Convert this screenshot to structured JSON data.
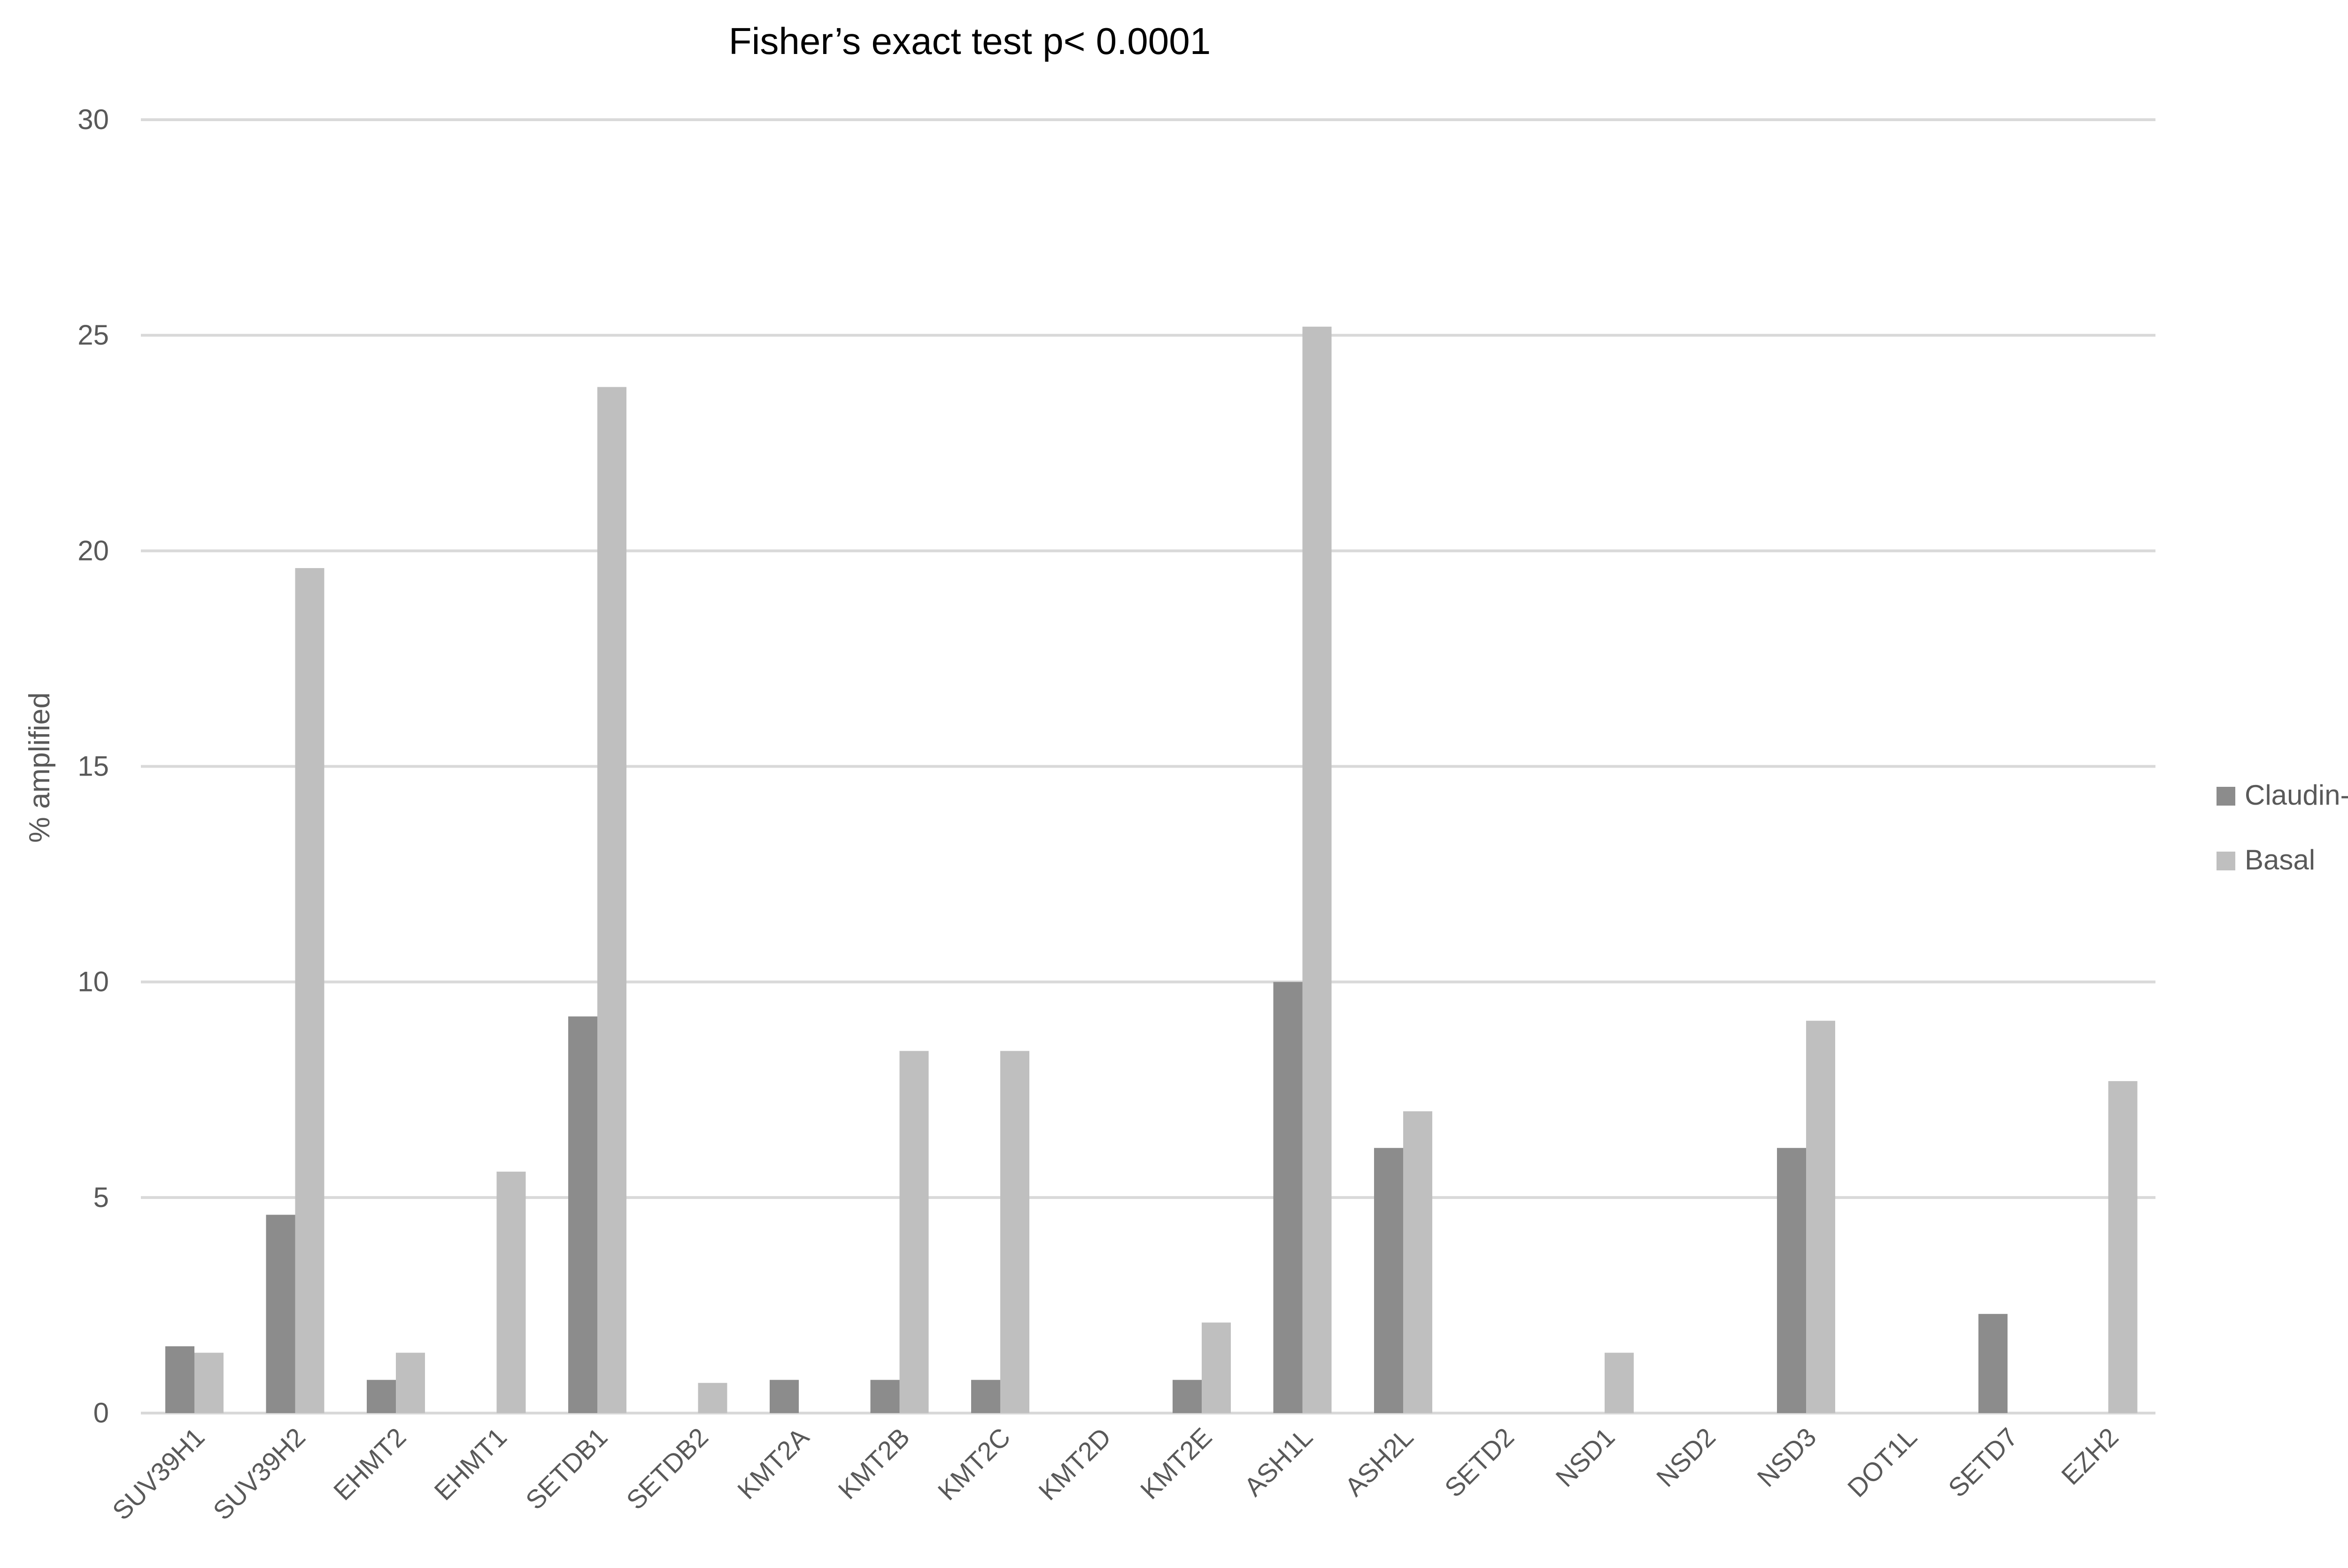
{
  "chart_data": {
    "type": "bar",
    "title": "Fisher’s exact test p< 0.0001",
    "xlabel": "",
    "ylabel": "% amplified",
    "ylim": [
      0,
      30
    ],
    "yticks": [
      "0",
      "5",
      "10",
      "15",
      "20",
      "25",
      "30"
    ],
    "grid": true,
    "legend_position": "right",
    "categories": [
      "SUV39H1",
      "SUV39H2",
      "EHMT2",
      "EHMT1",
      "SETDB1",
      "SETDB2",
      "KMT2A",
      "KMT2B",
      "KMT2C",
      "KMT2D",
      "KMT2E",
      "ASH1L",
      "ASH2L",
      "SETD2",
      "NSD1",
      "NSD2",
      "NSD3",
      "DOT1L",
      "SETD7",
      "EZH2"
    ],
    "series": [
      {
        "name": "Claudin-low",
        "color": "#8c8c8c",
        "values": [
          1.55,
          4.6,
          0.77,
          0,
          9.2,
          0,
          0.77,
          0.77,
          0.77,
          0,
          0.77,
          10.0,
          6.15,
          0,
          0,
          0,
          6.15,
          0,
          2.3,
          0
        ]
      },
      {
        "name": "Basal",
        "color": "#bfbfbf",
        "values": [
          1.4,
          19.6,
          1.4,
          5.6,
          23.8,
          0.7,
          0,
          8.4,
          8.4,
          0,
          2.1,
          25.2,
          7.0,
          0,
          1.4,
          0,
          9.1,
          0,
          0,
          7.7
        ]
      }
    ]
  }
}
